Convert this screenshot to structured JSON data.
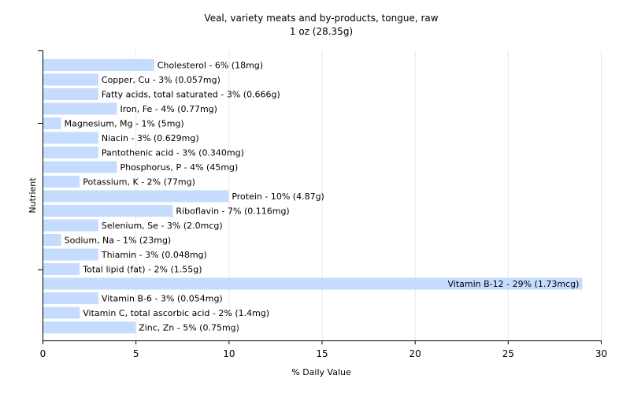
{
  "chart_data": {
    "type": "bar",
    "orientation": "horizontal",
    "title": "Veal, variety meats and by-products, tongue, raw",
    "subtitle": "1 oz (28.35g)",
    "xlabel": "% Daily Value",
    "ylabel": "Nutrient",
    "xlim": [
      0,
      30
    ],
    "xticks": [
      0,
      5,
      10,
      15,
      20,
      25,
      30
    ],
    "grid": true,
    "legend": "none",
    "colors": {
      "bar": "#c6dcff",
      "grid": "#e8e8e8",
      "axis": "#000000",
      "background": "#ffffff"
    },
    "categories": [
      "Cholesterol",
      "Copper, Cu",
      "Fatty acids, total saturated",
      "Iron, Fe",
      "Magnesium, Mg",
      "Niacin",
      "Pantothenic acid",
      "Phosphorus, P",
      "Potassium, K",
      "Protein",
      "Riboflavin",
      "Selenium, Se",
      "Sodium, Na",
      "Thiamin",
      "Total lipid (fat)",
      "Vitamin B-12",
      "Vitamin B-6",
      "Vitamin C, total ascorbic acid",
      "Zinc, Zn"
    ],
    "values": [
      6,
      3,
      3,
      4,
      1,
      3,
      3,
      4,
      2,
      10,
      7,
      3,
      1,
      3,
      2,
      29,
      3,
      2,
      5
    ],
    "labels": [
      "Cholesterol - 6% (18mg)",
      "Copper, Cu - 3% (0.057mg)",
      "Fatty acids, total saturated - 3% (0.666g)",
      "Iron, Fe - 4% (0.77mg)",
      "Magnesium, Mg - 1% (5mg)",
      "Niacin - 3% (0.629mg)",
      "Pantothenic acid - 3% (0.340mg)",
      "Phosphorus, P - 4% (45mg)",
      "Potassium, K - 2% (77mg)",
      "Protein - 10% (4.87g)",
      "Riboflavin - 7% (0.116mg)",
      "Selenium, Se - 3% (2.0mcg)",
      "Sodium, Na - 1% (23mg)",
      "Thiamin - 3% (0.048mg)",
      "Total lipid (fat) - 2% (1.55g)",
      "Vitamin B-12 - 29% (1.73mcg)",
      "Vitamin B-6 - 3% (0.054mg)",
      "Vitamin C, total ascorbic acid - 2% (1.4mg)",
      "Zinc, Zn - 5% (0.75mg)"
    ]
  }
}
